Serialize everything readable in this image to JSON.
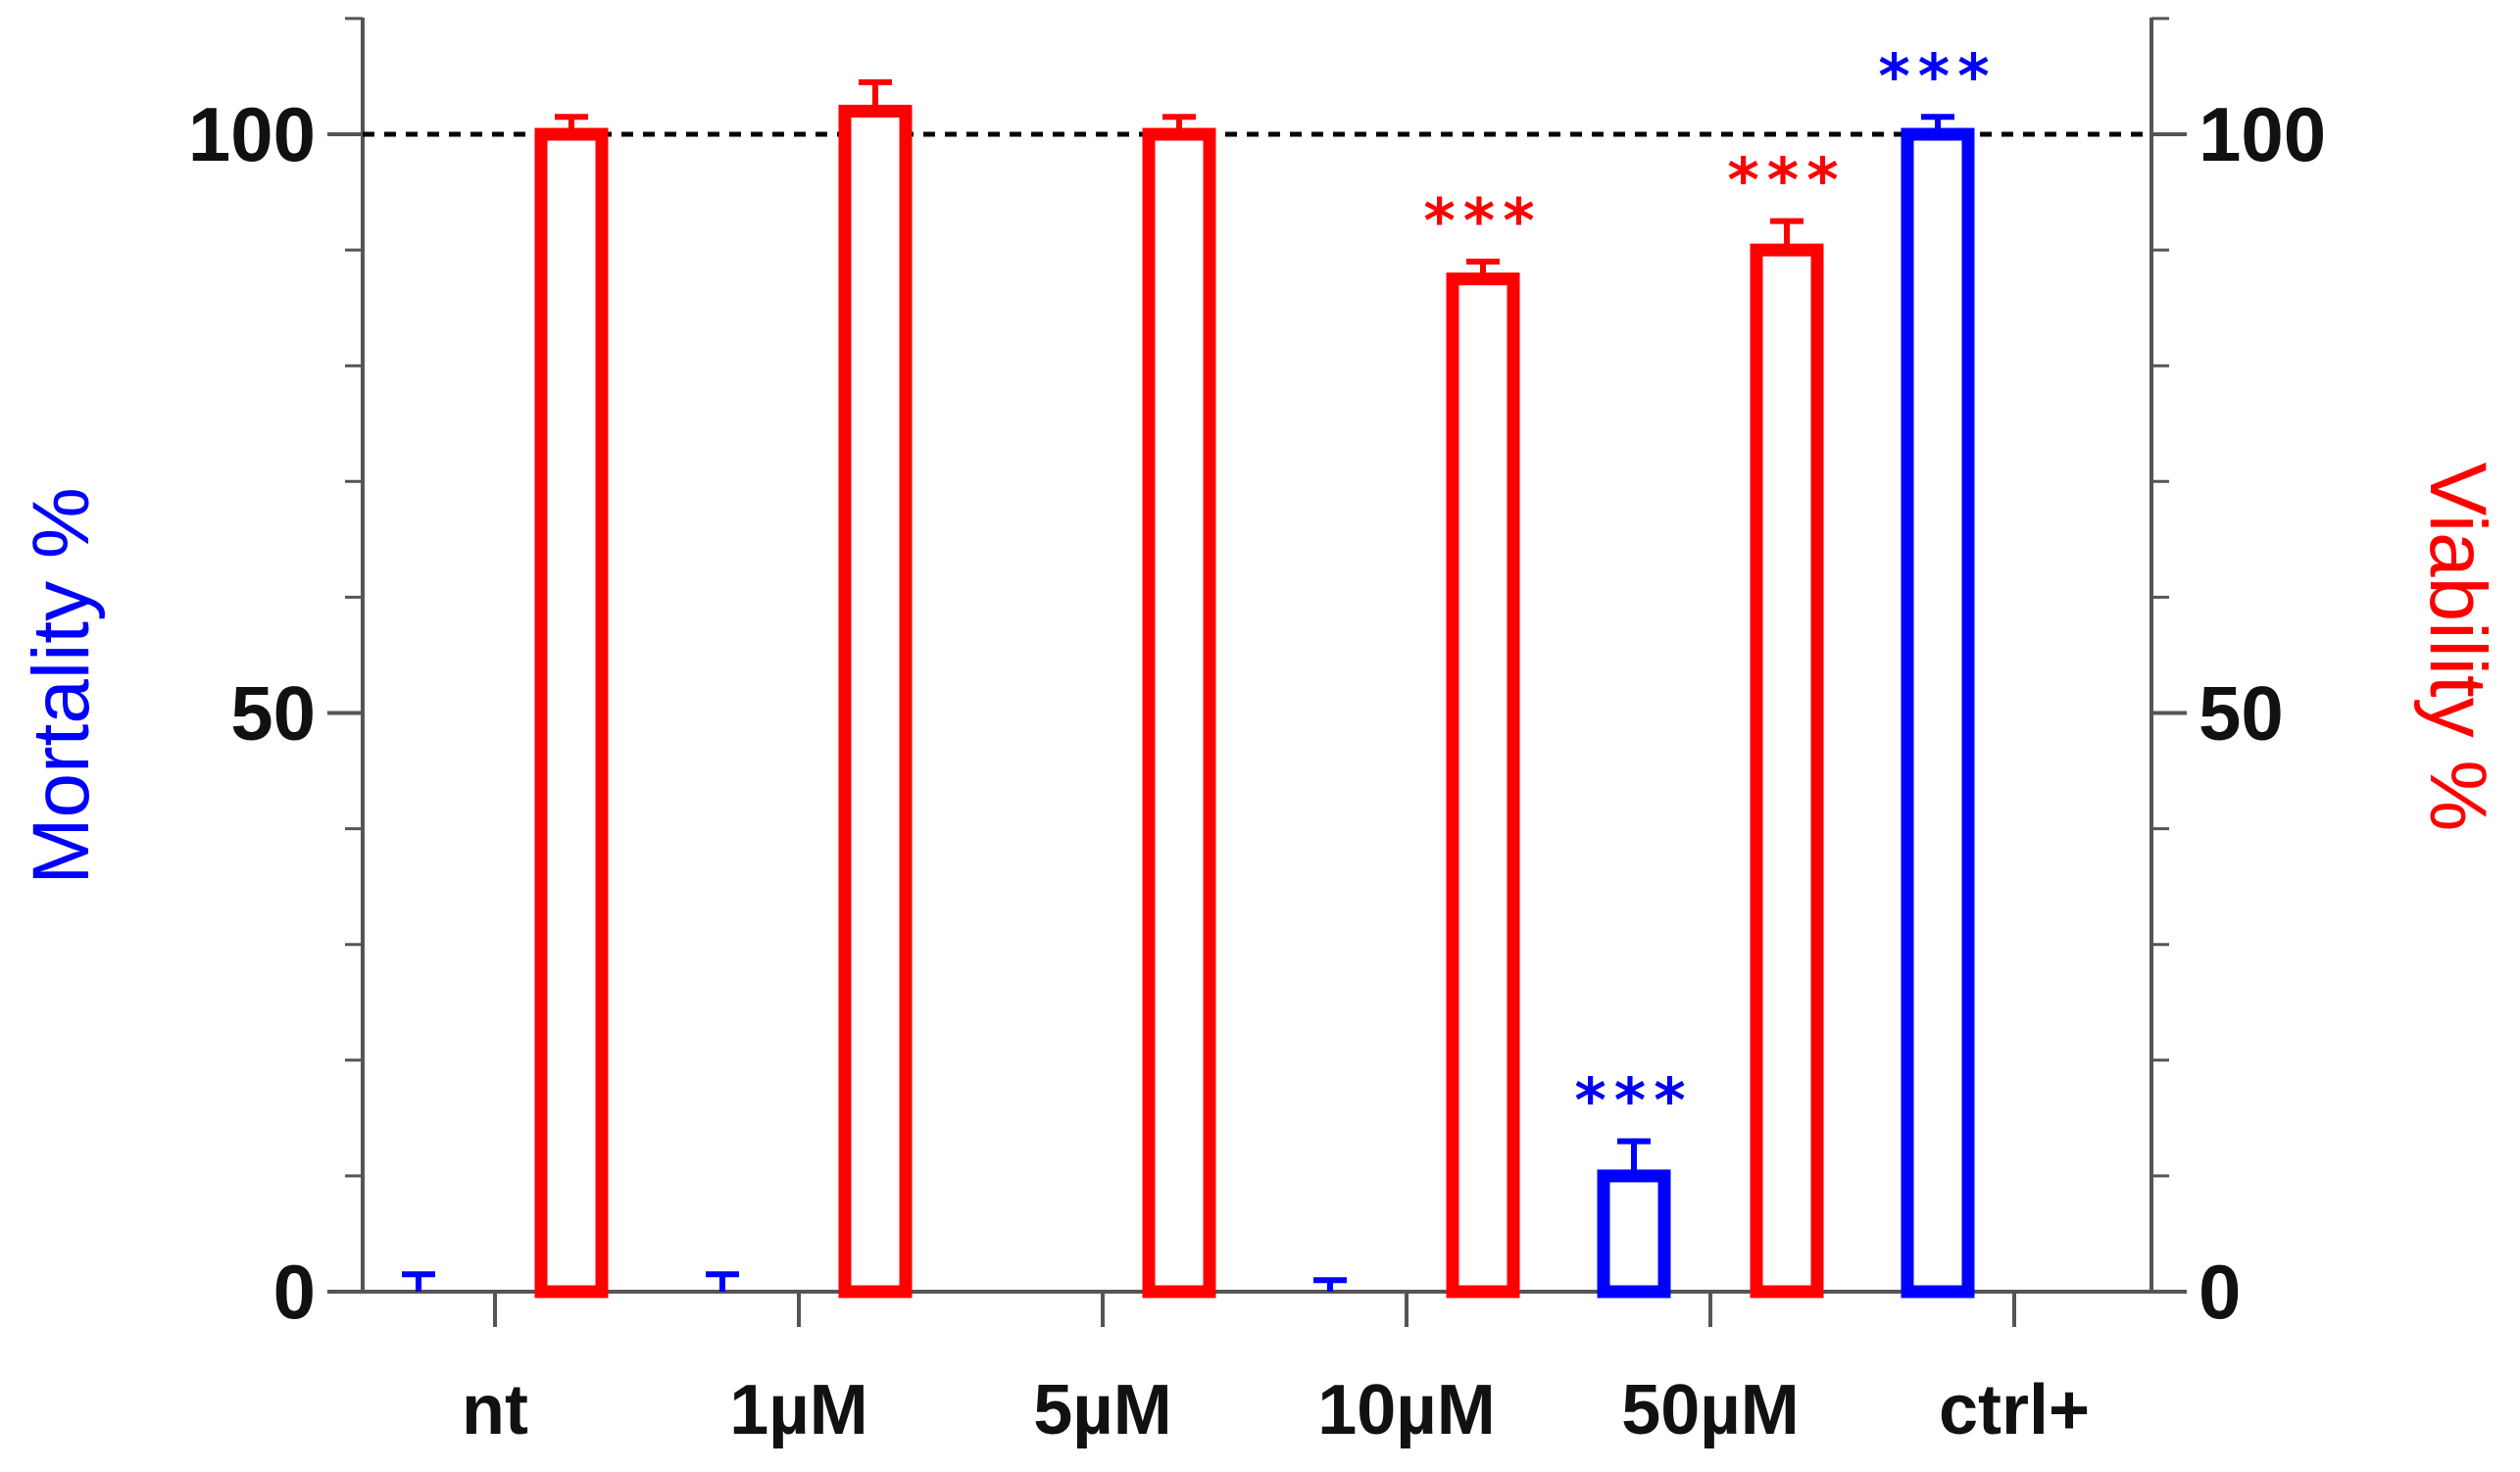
{
  "chart_data": {
    "type": "bar",
    "categories": [
      "nt",
      "1µM",
      "5µM",
      "10µM",
      "50µM",
      "ctrl+"
    ],
    "series": [
      {
        "name": "Mortality %",
        "axis": "left",
        "color": "#0000ff",
        "values": [
          0,
          0,
          0,
          0,
          10,
          100
        ],
        "errors": [
          1.5,
          1.5,
          0,
          1,
          3,
          1.5
        ],
        "significance": [
          "",
          "",
          "",
          "",
          "***",
          "***"
        ]
      },
      {
        "name": "Viability %",
        "axis": "right",
        "color": "#ff0000",
        "values": [
          100,
          102,
          100,
          87.5,
          90,
          null
        ],
        "errors": [
          1.5,
          2.5,
          1.5,
          1.5,
          2.5,
          null
        ],
        "significance": [
          "",
          "",
          "",
          "***",
          "***",
          ""
        ]
      }
    ],
    "left_axis": {
      "label": "Mortality %",
      "color": "#0000ff",
      "ylim": [
        0,
        110
      ],
      "major_ticks": [
        0,
        50,
        100
      ],
      "tick_labels": [
        "0",
        "50",
        "100"
      ],
      "minor_step": 10
    },
    "right_axis": {
      "label": "Viability %",
      "color": "#ff0000",
      "ylim": [
        0,
        110
      ],
      "major_ticks": [
        0,
        50,
        100
      ],
      "tick_labels": [
        "0",
        "50",
        "100"
      ],
      "minor_step": 10
    },
    "reference_line": {
      "y": 100,
      "style": "dashed",
      "color": "#000000"
    },
    "title": "",
    "xlabel": ""
  }
}
